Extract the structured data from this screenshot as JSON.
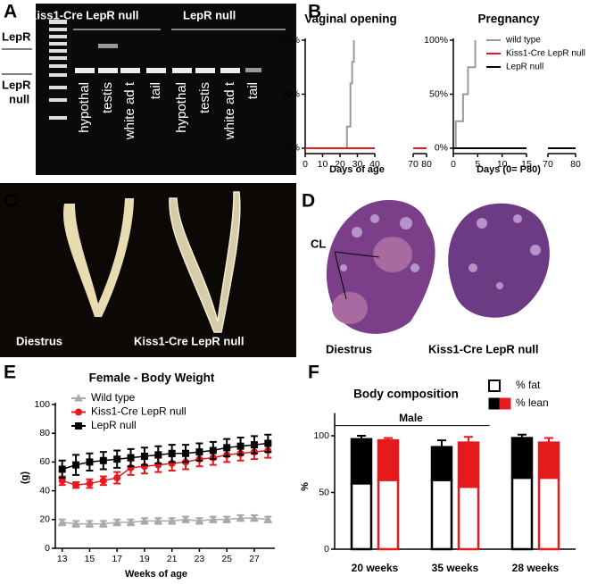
{
  "panels": [
    "A",
    "B",
    "C",
    "D",
    "E",
    "F"
  ],
  "gel": {
    "group_labels": [
      "Kiss1-Cre LepR null",
      "LepR null"
    ],
    "band_labels": {
      "lepr": "LepR",
      "lepr_null": [
        "LepR",
        "null"
      ]
    },
    "lanes": [
      "hypothal",
      "testis",
      "white ad t",
      "tail",
      "hypothal",
      "testis",
      "white ad t",
      "tail"
    ]
  },
  "uterus": {
    "captions": [
      "Diestrus",
      "Kiss1-Cre LepR null"
    ]
  },
  "ovary": {
    "annotation": "CL",
    "captions": [
      "Diestrus",
      "Kiss1-Cre LepR null"
    ]
  },
  "chart_data": [
    {
      "type": "line",
      "title": "Vaginal opening",
      "xlabel": "Days of age",
      "xlim": [
        0,
        80
      ],
      "x_break": [
        40,
        70
      ],
      "xticks": [
        0,
        10,
        20,
        30,
        40,
        70,
        80
      ],
      "ylim": [
        -5,
        100
      ],
      "yticks": [
        {
          "value": 0,
          "label": "0%"
        },
        {
          "value": 50,
          "label": "50%"
        },
        {
          "value": 100,
          "label": "100%"
        }
      ],
      "series": [
        {
          "color": "#999999",
          "x": [
            0,
            24,
            24,
            26,
            26,
            27,
            27,
            28,
            28
          ],
          "values": [
            0,
            0,
            20,
            20,
            60,
            60,
            80,
            80,
            100
          ]
        },
        {
          "color": "#000000",
          "x": [
            0,
            40,
            70,
            80
          ],
          "values": [
            0,
            0,
            0,
            0
          ]
        },
        {
          "color": "#e41a1c",
          "x": [
            0,
            40,
            70,
            80
          ],
          "values": [
            0,
            0,
            0,
            0
          ]
        }
      ]
    },
    {
      "type": "line",
      "title": "Pregnancy",
      "xlabel": "Days (0= P80)",
      "xlim": [
        0,
        80
      ],
      "x_break": [
        15,
        70
      ],
      "xticks": [
        0,
        5,
        10,
        15,
        70,
        80
      ],
      "ylim": [
        -5,
        100
      ],
      "yticks": [
        {
          "value": 0,
          "label": "0%"
        },
        {
          "value": 50,
          "label": "50%"
        },
        {
          "value": 100,
          "label": "100%"
        }
      ],
      "legend": "upper right",
      "series": [
        {
          "name": "wild type",
          "color": "#999999",
          "x": [
            0,
            0.5,
            0.5,
            2,
            2,
            3,
            3,
            4.5,
            4.5
          ],
          "values": [
            0,
            0,
            25,
            25,
            50,
            50,
            75,
            75,
            100
          ]
        },
        {
          "name": "Kiss1-Cre LepR null",
          "color": "#e41a1c",
          "x": [
            0,
            15,
            70,
            80
          ],
          "values": [
            0,
            0,
            0,
            0
          ]
        },
        {
          "name": "LepR null",
          "color": "#000000",
          "x": [
            0,
            15,
            70,
            80
          ],
          "values": [
            0,
            0,
            0,
            0
          ]
        }
      ]
    },
    {
      "type": "line",
      "title": "Female - Body  Weight",
      "xlabel": "Weeks of age",
      "ylabel": "(g)",
      "xlim": [
        12.5,
        28.5
      ],
      "xticks": [
        13,
        15,
        17,
        19,
        21,
        23,
        25,
        27
      ],
      "ylim": [
        0,
        100
      ],
      "yticks": [
        0,
        20,
        40,
        60,
        80,
        100
      ],
      "legend": "upper left",
      "x": [
        13,
        14,
        15,
        16,
        17,
        18,
        19,
        20,
        21,
        22,
        23,
        24,
        25,
        26,
        27,
        28
      ],
      "series": [
        {
          "name": "Wild type",
          "color": "#aaaaaa",
          "marker": "triangle",
          "values": [
            18,
            17,
            17,
            17,
            18,
            18,
            19,
            19,
            19,
            20,
            19,
            20,
            20,
            21,
            21,
            20
          ],
          "errors": [
            2,
            2,
            2,
            2,
            2,
            2,
            2,
            2,
            2,
            2,
            2,
            2,
            2,
            2,
            2,
            2
          ]
        },
        {
          "name": "Kiss1-Cre LepR null",
          "color": "#e41a1c",
          "marker": "circle",
          "values": [
            47,
            44,
            45,
            47,
            49,
            56,
            57,
            58,
            59,
            60,
            62,
            63,
            65,
            66,
            67,
            68
          ],
          "errors": [
            3,
            2,
            3,
            3,
            4,
            5,
            5,
            5,
            5,
            5,
            5,
            5,
            5,
            5,
            5,
            5
          ]
        },
        {
          "name": "LepR null",
          "color": "#000000",
          "marker": "square",
          "values": [
            55,
            58,
            60,
            61,
            62,
            63,
            64,
            65,
            66,
            66,
            67,
            68,
            70,
            71,
            72,
            73
          ],
          "errors": [
            6,
            7,
            6,
            6,
            6,
            6,
            6,
            6,
            6,
            6,
            6,
            6,
            6,
            6,
            6,
            6
          ]
        }
      ]
    },
    {
      "type": "bar",
      "title": "Body composition",
      "ylabel": "%",
      "annotation": "Male",
      "categories": [
        "20 weeks",
        "35 weeks",
        "28 weeks"
      ],
      "group_colors": [
        "#000000",
        "#e41a1c"
      ],
      "ylim": [
        0,
        120
      ],
      "yticks": [
        0,
        50,
        100
      ],
      "legend": "upper right",
      "series": [
        {
          "name": "% fat",
          "color": "#ffffff",
          "values": [
            [
              58,
              61
            ],
            [
              61,
              55
            ],
            [
              63,
              63
            ]
          ]
        },
        {
          "name": "% lean",
          "values": [
            [
              39,
              35
            ],
            [
              29,
              39
            ],
            [
              35,
              31
            ]
          ],
          "errors": [
            [
              3,
              2
            ],
            [
              6,
              5
            ],
            [
              3,
              4
            ]
          ]
        }
      ]
    }
  ]
}
